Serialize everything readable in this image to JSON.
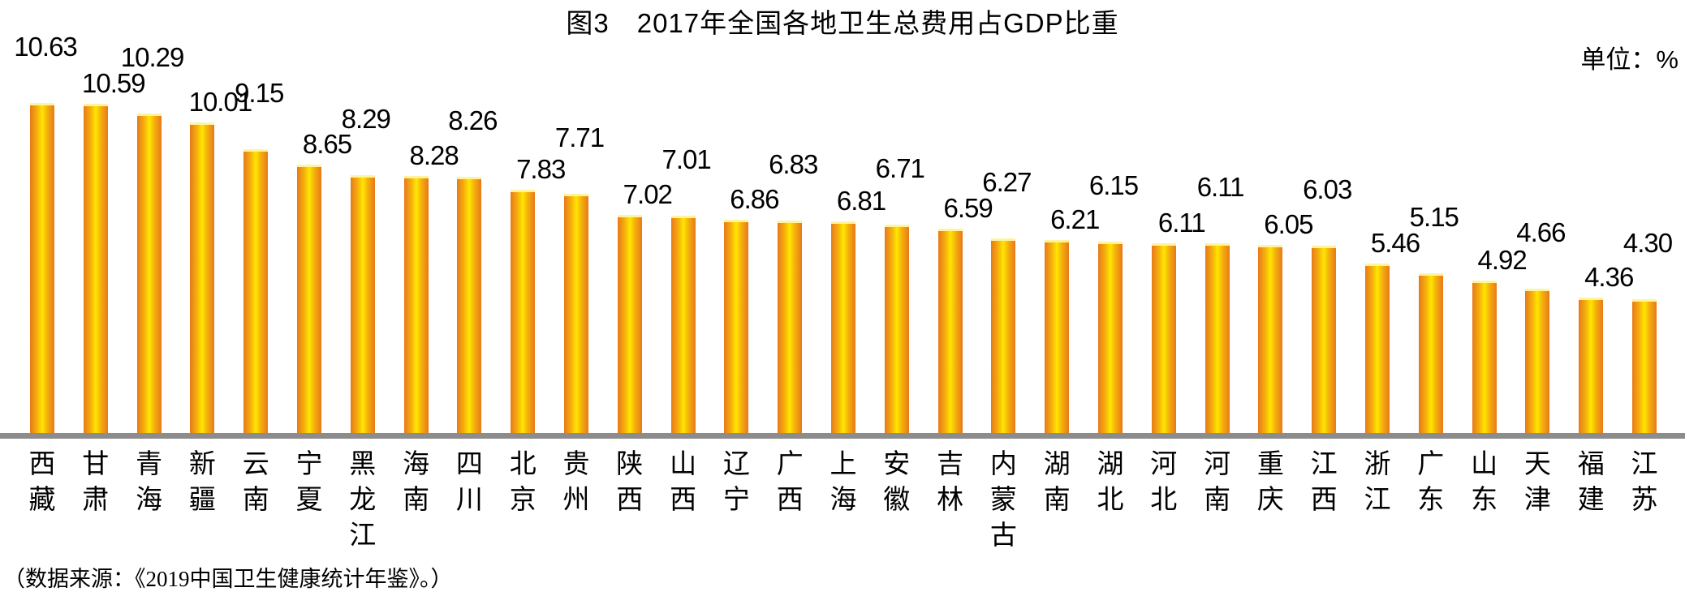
{
  "chart_data": {
    "type": "bar",
    "title": "图3　2017年全国各地卫生总费用占GDP比重",
    "unit_label": "单位：%",
    "source": "（数据来源：《2019中国卫生健康统计年鉴》。）",
    "categories": [
      "西藏",
      "甘肃",
      "青海",
      "新疆",
      "云南",
      "宁夏",
      "黑龙江",
      "海南",
      "四川",
      "北京",
      "贵州",
      "陕西",
      "山西",
      "辽宁",
      "广西",
      "上海",
      "安徽",
      "吉林",
      "内蒙古",
      "湖南",
      "湖北",
      "河北",
      "河南",
      "重庆",
      "江西",
      "浙江",
      "广东",
      "山东",
      "天津",
      "福建",
      "江苏"
    ],
    "values": [
      10.63,
      10.59,
      10.29,
      10.01,
      9.15,
      8.65,
      8.29,
      8.28,
      8.26,
      7.83,
      7.71,
      7.02,
      7.01,
      6.86,
      6.83,
      6.81,
      6.71,
      6.59,
      6.27,
      6.21,
      6.15,
      6.11,
      6.11,
      6.05,
      6.03,
      5.46,
      5.15,
      4.92,
      4.66,
      4.36,
      4.3
    ],
    "labels": [
      "10.63",
      "10.59",
      "10.29",
      "10.01",
      "9.15",
      "8.65",
      "8.29",
      "8.28",
      "8.26",
      "7.83",
      "7.71",
      "7.02",
      "7.01",
      "6.86",
      "6.83",
      "6.81",
      "6.71",
      "6.59",
      "6.27",
      "6.21",
      "6.15",
      "6.11",
      "6.11",
      "6.05",
      "6.03",
      "5.46",
      "5.15",
      "4.92",
      "4.66",
      "4.36",
      "4.30"
    ],
    "ylim": [
      0,
      11
    ],
    "grid": false,
    "legend": "none",
    "colors": {
      "bar_edge": "#e8791a",
      "bar_center": "#ffe600",
      "axis": "#8c8c8c"
    }
  }
}
